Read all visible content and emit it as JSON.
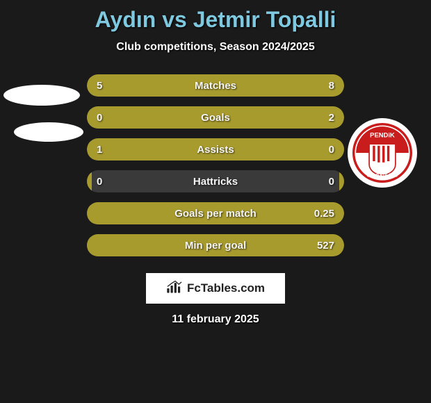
{
  "header": {
    "title": "Aydın vs Jetmir Topalli",
    "subtitle": "Club competitions, Season 2024/2025"
  },
  "colors": {
    "bar_left": "#a89b2e",
    "bar_right": "#a89b2e",
    "bar_track": "#3a3a3a"
  },
  "stats": [
    {
      "label": "Matches",
      "left_val": "5",
      "right_val": "8",
      "left_pct": 38,
      "right_pct": 62
    },
    {
      "label": "Goals",
      "left_val": "0",
      "right_val": "2",
      "left_pct": 2,
      "right_pct": 98
    },
    {
      "label": "Assists",
      "left_val": "1",
      "right_val": "0",
      "left_pct": 98,
      "right_pct": 2
    },
    {
      "label": "Hattricks",
      "left_val": "0",
      "right_val": "0",
      "left_pct": 2,
      "right_pct": 2
    },
    {
      "label": "Goals per match",
      "left_val": "",
      "right_val": "0.25",
      "left_pct": 2,
      "right_pct": 98
    },
    {
      "label": "Min per goal",
      "left_val": "",
      "right_val": "527",
      "left_pct": 2,
      "right_pct": 98
    }
  ],
  "footer": {
    "brand": "FcTables.com",
    "date": "11 february 2025"
  },
  "badges": {
    "right_name": "Pendik Spor Kulübü"
  }
}
